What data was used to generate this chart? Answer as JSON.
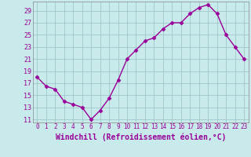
{
  "x": [
    0,
    1,
    2,
    3,
    4,
    5,
    6,
    7,
    8,
    9,
    10,
    11,
    12,
    13,
    14,
    15,
    16,
    17,
    18,
    19,
    20,
    21,
    22,
    23
  ],
  "y": [
    18,
    16.5,
    16,
    14,
    13.5,
    13,
    11,
    12.5,
    14.5,
    17.5,
    21,
    22.5,
    24,
    24.5,
    26,
    27,
    27,
    28.5,
    29.5,
    30,
    28.5,
    25,
    23,
    21
  ],
  "line_color": "#990099",
  "marker": "D",
  "marker_size": 2.5,
  "bg_color": "#c8eaea",
  "grid_color": "#9ec8c8",
  "xlabel": "Windchill (Refroidissement éolien,°C)",
  "xlabel_color": "#990099",
  "xlabel_fontsize": 7,
  "ylabel_ticks": [
    11,
    13,
    15,
    17,
    19,
    21,
    23,
    25,
    27,
    29
  ],
  "xlim": [
    -0.5,
    23.5
  ],
  "ylim": [
    10.5,
    30.5
  ],
  "xticks": [
    0,
    1,
    2,
    3,
    4,
    5,
    6,
    7,
    8,
    9,
    10,
    11,
    12,
    13,
    14,
    15,
    16,
    17,
    18,
    19,
    20,
    21,
    22,
    23
  ],
  "tick_color": "#990099",
  "ytick_fontsize": 6,
  "xtick_fontsize": 5.5,
  "spine_color": "#888888",
  "linewidth": 1.0
}
